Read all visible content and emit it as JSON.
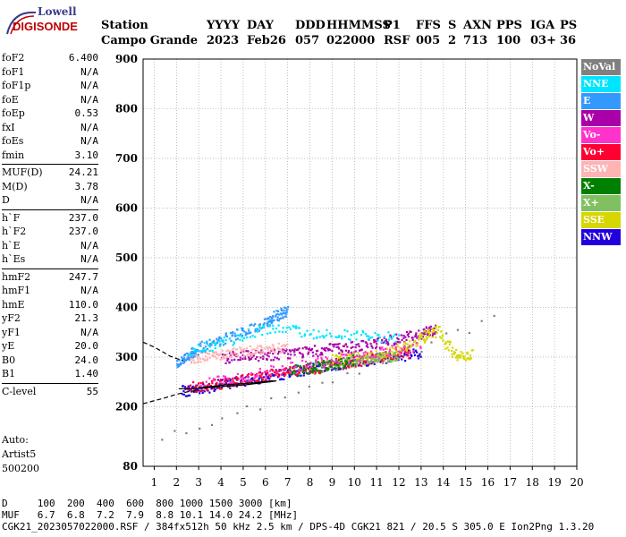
{
  "logo": {
    "line1": "Lowell",
    "line2": "DIGISONDE"
  },
  "header": {
    "station_label": "Station",
    "station_value": "Campo Grande",
    "cols": [
      {
        "label": "YYYY",
        "value": "2023"
      },
      {
        "label": "DAY",
        "value": "Feb26"
      },
      {
        "label": "DDD",
        "value": "057"
      },
      {
        "label": "HHMMSS",
        "value": "022000"
      },
      {
        "label": "P1",
        "value": "RSF"
      },
      {
        "label": "FFS",
        "value": "005"
      },
      {
        "label": "S",
        "value": "2"
      },
      {
        "label": "AXN",
        "value": "713"
      },
      {
        "label": "PPS",
        "value": "100"
      },
      {
        "label": "IGA",
        "value": "03+"
      },
      {
        "label": "PS",
        "value": "36"
      }
    ]
  },
  "params": [
    [
      {
        "name": "foF2",
        "value": "6.400"
      },
      {
        "name": "foF1",
        "value": "N/A"
      },
      {
        "name": "foF1p",
        "value": "N/A"
      },
      {
        "name": "foE",
        "value": "N/A"
      },
      {
        "name": "foEp",
        "value": "0.53"
      },
      {
        "name": "fxI",
        "value": "N/A"
      },
      {
        "name": "foEs",
        "value": "N/A"
      },
      {
        "name": "fmin",
        "value": "3.10"
      }
    ],
    [
      {
        "name": "MUF(D)",
        "value": "24.21"
      },
      {
        "name": "M(D)",
        "value": "3.78"
      },
      {
        "name": "D",
        "value": "N/A"
      }
    ],
    [
      {
        "name": "h`F",
        "value": "237.0"
      },
      {
        "name": "h`F2",
        "value": "237.0"
      },
      {
        "name": "h`E",
        "value": "N/A"
      },
      {
        "name": "h`Es",
        "value": "N/A"
      }
    ],
    [
      {
        "name": "hmF2",
        "value": "247.7"
      },
      {
        "name": "hmF1",
        "value": "N/A"
      },
      {
        "name": "hmE",
        "value": "110.0"
      },
      {
        "name": "yF2",
        "value": "21.3"
      },
      {
        "name": "yF1",
        "value": "N/A"
      },
      {
        "name": "yE",
        "value": "20.0"
      },
      {
        "name": "B0",
        "value": "24.0"
      },
      {
        "name": "B1",
        "value": "1.40"
      }
    ],
    [
      {
        "name": "C-level",
        "value": "55"
      }
    ]
  ],
  "auto": {
    "line1": "Auto:",
    "line2": "Artist5",
    "line3": "500200"
  },
  "legend": [
    {
      "label": "NoVal",
      "color": "#808080"
    },
    {
      "label": "NNE",
      "color": "#00e5ff"
    },
    {
      "label": "E",
      "color": "#3399ff"
    },
    {
      "label": "W",
      "color": "#aa00aa"
    },
    {
      "label": "Vo-",
      "color": "#ff33cc"
    },
    {
      "label": "Vo+",
      "color": "#ff0033"
    },
    {
      "label": "SSW",
      "color": "#ffb3b3"
    },
    {
      "label": "X-",
      "color": "#008000"
    },
    {
      "label": "X+",
      "color": "#80c060"
    },
    {
      "label": "SSE",
      "color": "#d6d600"
    },
    {
      "label": "NNW",
      "color": "#2200dd"
    }
  ],
  "footer": {
    "d_label": "D",
    "d_values": "100  200  400  600  800 1000 1500 3000 [km]",
    "muf_label": "MUF",
    "muf_values": "6.7  6.8  7.2  7.9  8.8 10.1 14.0 24.2 [MHz]",
    "info": "CGK21_2023057022000.RSF / 384fx512h 50 kHz 2.5 km / DPS-4D CGK21 821 / 20.5 S 305.0 E Ion2Png 1.3.20"
  },
  "chart_data": {
    "type": "scatter",
    "xlim": [
      0.5,
      20
    ],
    "ylim": [
      80,
      900
    ],
    "x_ticks": [
      1,
      2,
      3,
      4,
      5,
      6,
      7,
      8,
      9,
      10,
      11,
      12,
      13,
      14,
      15,
      16,
      17,
      18,
      19,
      20
    ],
    "y_ticks": [
      80,
      200,
      300,
      400,
      500,
      600,
      700,
      800,
      900
    ],
    "xlabel": "",
    "ylabel": "",
    "grid": true,
    "profile_line": [
      [
        2.1,
        236
      ],
      [
        2.6,
        236
      ],
      [
        3.0,
        237
      ],
      [
        3.6,
        239
      ],
      [
        4.2,
        241
      ],
      [
        4.8,
        243
      ],
      [
        5.3,
        245
      ],
      [
        5.8,
        248
      ],
      [
        6.2,
        250
      ],
      [
        6.5,
        252
      ],
      [
        6.2,
        252
      ],
      [
        5.5,
        248
      ],
      [
        4.8,
        246
      ],
      [
        4.2,
        244
      ],
      [
        3.8,
        242
      ],
      [
        3.4,
        240
      ],
      [
        3.0,
        238
      ]
    ],
    "ext_line_upper": [
      [
        0.5,
        330
      ],
      [
        1.0,
        320
      ],
      [
        1.4,
        310
      ],
      [
        1.7,
        302
      ],
      [
        2.0,
        297
      ],
      [
        2.3,
        293
      ]
    ],
    "ext_line_lower": [
      [
        0.5,
        206
      ],
      [
        1.0,
        212
      ],
      [
        1.5,
        218
      ],
      [
        2.0,
        225
      ],
      [
        2.5,
        230
      ],
      [
        3.0,
        233
      ]
    ],
    "trace_series": [
      {
        "color": "#2200dd",
        "values": [
          [
            2.2,
            232
          ],
          [
            3.0,
            238
          ],
          [
            4.0,
            246
          ],
          [
            5.0,
            254
          ],
          [
            6.0,
            262
          ],
          [
            7.0,
            270
          ],
          [
            8.0,
            278
          ],
          [
            9.0,
            285
          ],
          [
            10.0,
            292
          ],
          [
            11.0,
            298
          ],
          [
            12.0,
            304
          ],
          [
            13.0,
            310
          ]
        ]
      },
      {
        "color": "#ff0033",
        "values": [
          [
            2.5,
            240
          ],
          [
            3.5,
            246
          ],
          [
            4.5,
            252
          ],
          [
            5.5,
            260
          ],
          [
            6.5,
            268
          ],
          [
            7.5,
            274
          ],
          [
            8.5,
            281
          ],
          [
            9.5,
            289
          ],
          [
            10.5,
            296
          ],
          [
            11.5,
            303
          ],
          [
            12.5,
            309
          ]
        ]
      },
      {
        "color": "#aa00aa",
        "values": [
          [
            4.0,
            300
          ],
          [
            5.0,
            303
          ],
          [
            6.0,
            306
          ],
          [
            7.0,
            309
          ],
          [
            8.0,
            313
          ],
          [
            9.0,
            318
          ],
          [
            10.0,
            322
          ],
          [
            11.0,
            330
          ],
          [
            12.0,
            340
          ],
          [
            13.0,
            350
          ],
          [
            13.6,
            358
          ]
        ]
      },
      {
        "color": "#ffb3b3",
        "values": [
          [
            2.5,
            300
          ],
          [
            3.2,
            303
          ],
          [
            4.0,
            308
          ],
          [
            5.0,
            313
          ],
          [
            6.0,
            318
          ],
          [
            7.0,
            322
          ]
        ]
      },
      {
        "color": "#3399ff",
        "values": [
          [
            2.0,
            290
          ],
          [
            2.5,
            305
          ],
          [
            3.0,
            320
          ],
          [
            4.0,
            335
          ],
          [
            5.0,
            352
          ],
          [
            6.0,
            370
          ],
          [
            6.5,
            385
          ],
          [
            7.0,
            395
          ]
        ]
      },
      {
        "color": "#00e5ff",
        "values": [
          [
            2.5,
            310
          ],
          [
            4.0,
            330
          ],
          [
            6.0,
            360
          ],
          [
            8.0,
            350
          ],
          [
            10.0,
            345
          ],
          [
            12.0,
            340
          ]
        ]
      },
      {
        "color": "#d6d600",
        "values": [
          [
            9.0,
            295
          ],
          [
            10.0,
            300
          ],
          [
            11.0,
            305
          ],
          [
            12.0,
            320
          ],
          [
            13.0,
            340
          ],
          [
            13.7,
            355
          ],
          [
            14.5,
            305
          ],
          [
            15.3,
            305
          ]
        ]
      },
      {
        "color": "#80c060",
        "values": [
          [
            8.0,
            278
          ],
          [
            9.0,
            286
          ],
          [
            10.0,
            294
          ],
          [
            11.0,
            300
          ],
          [
            12.0,
            305
          ]
        ]
      },
      {
        "color": "#008000",
        "values": [
          [
            7.0,
            272
          ],
          [
            8.0,
            280
          ],
          [
            9.0,
            288
          ],
          [
            10.0,
            295
          ]
        ]
      },
      {
        "color": "#ff33cc",
        "values": [
          [
            3.0,
            245
          ],
          [
            5.0,
            262
          ],
          [
            7.0,
            280
          ],
          [
            9.0,
            295
          ],
          [
            11.0,
            310
          ],
          [
            13.0,
            325
          ]
        ]
      },
      {
        "color": "#808080",
        "values": [
          [
            1.3,
            135
          ],
          [
            16.8,
            385
          ]
        ]
      }
    ]
  }
}
